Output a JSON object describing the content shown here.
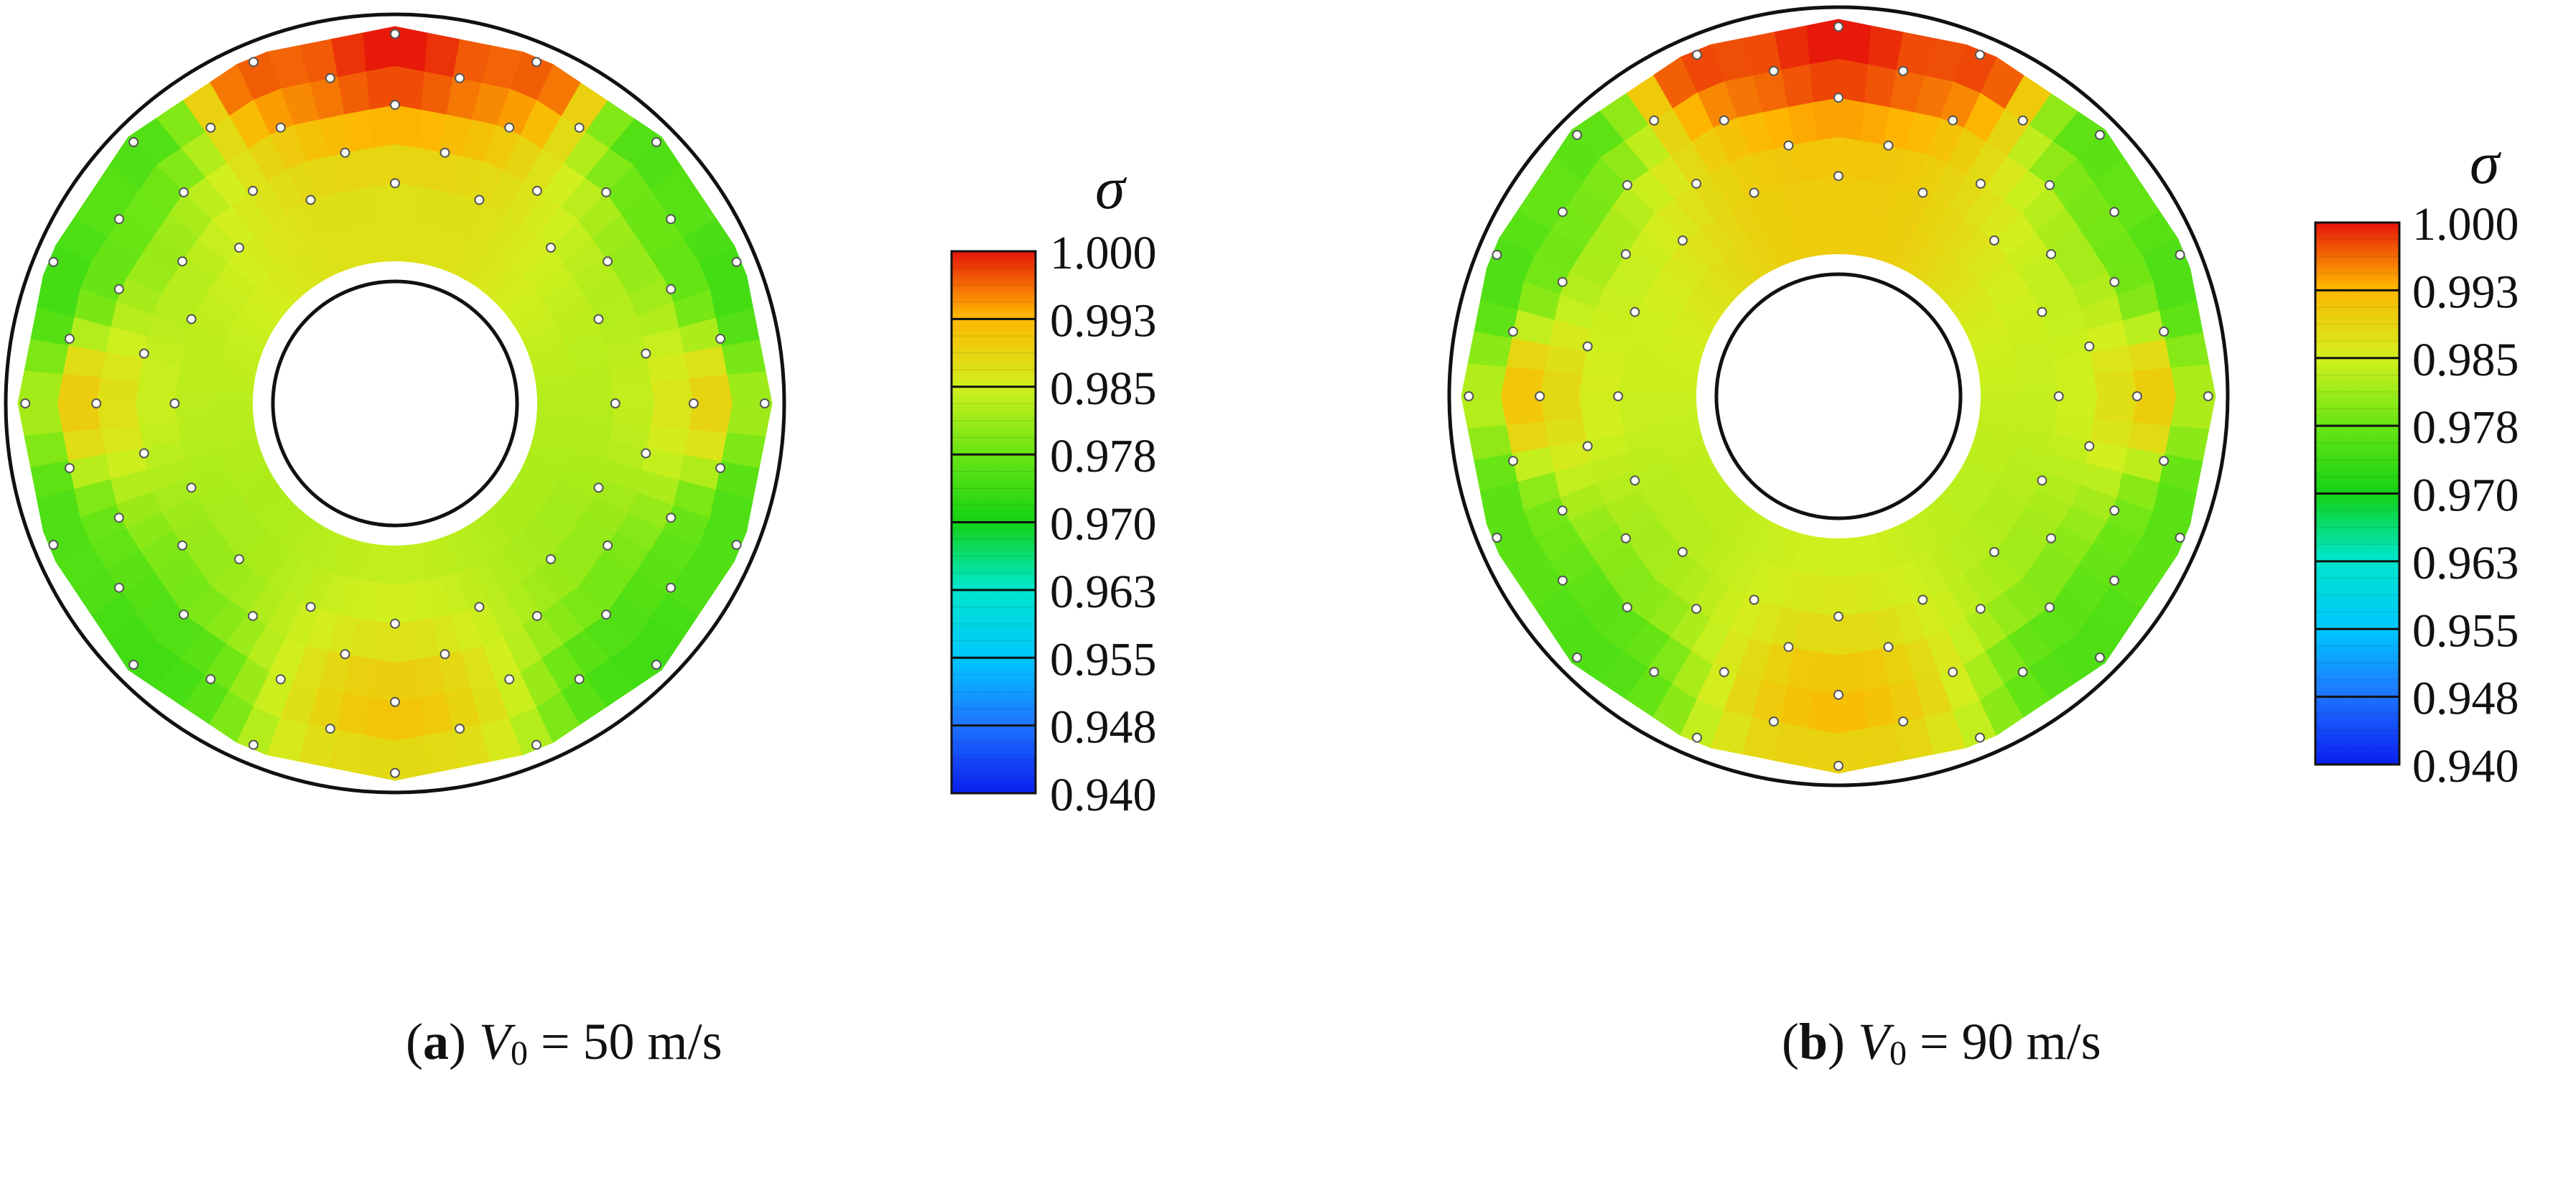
{
  "figure": {
    "colorbar": {
      "symbol": "σ",
      "tick_labels": [
        "1.000",
        "0.993",
        "0.985",
        "0.978",
        "0.970",
        "0.963",
        "0.955",
        "0.948",
        "0.940"
      ],
      "stops": [
        {
          "v": 0.94,
          "c": "#0a1ef0"
        },
        {
          "v": 0.948,
          "c": "#1e78ff"
        },
        {
          "v": 0.955,
          "c": "#00c8ff"
        },
        {
          "v": 0.963,
          "c": "#00e6c8"
        },
        {
          "v": 0.97,
          "c": "#14d214"
        },
        {
          "v": 0.978,
          "c": "#6ee614"
        },
        {
          "v": 0.985,
          "c": "#d2f01e"
        },
        {
          "v": 0.993,
          "c": "#ffb400"
        },
        {
          "v": 1.0,
          "c": "#e6140a"
        }
      ]
    }
  },
  "chart_data": [
    {
      "type": "heatmap",
      "panel_label": "(a)",
      "caption": {
        "label": "a",
        "var": "V",
        "sub": "0",
        "rest": " = 50 m/s"
      },
      "colorbar_range": [
        0.94,
        1.0
      ],
      "samples": [
        {
          "angle_deg": 90,
          "radius": "outer",
          "value": 1.0
        },
        {
          "angle_deg": 67,
          "radius": "outer",
          "value": 0.997
        },
        {
          "angle_deg": 113,
          "radius": "outer",
          "value": 0.997
        },
        {
          "angle_deg": 90,
          "radius": "inner",
          "value": 0.987
        },
        {
          "angle_deg": 45,
          "radius": "outer",
          "value": 0.975
        },
        {
          "angle_deg": 135,
          "radius": "outer",
          "value": 0.975
        },
        {
          "angle_deg": 20,
          "radius": "outer",
          "value": 0.974
        },
        {
          "angle_deg": 160,
          "radius": "outer",
          "value": 0.974
        },
        {
          "angle_deg": 0,
          "radius": "mid",
          "value": 0.989
        },
        {
          "angle_deg": 180,
          "radius": "mid",
          "value": 0.99
        },
        {
          "angle_deg": -20,
          "radius": "outer",
          "value": 0.975
        },
        {
          "angle_deg": 200,
          "radius": "outer",
          "value": 0.975
        },
        {
          "angle_deg": -45,
          "radius": "outer",
          "value": 0.974
        },
        {
          "angle_deg": 225,
          "radius": "outer",
          "value": 0.974
        },
        {
          "angle_deg": -90,
          "radius": "mid",
          "value": 0.991
        },
        {
          "angle_deg": -90,
          "radius": "outer",
          "value": 0.988
        }
      ]
    },
    {
      "type": "heatmap",
      "panel_label": "(b)",
      "caption": {
        "label": "b",
        "var": "V",
        "sub": "0",
        "rest": " = 90 m/s"
      },
      "colorbar_range": [
        0.94,
        1.0
      ],
      "samples": [
        {
          "angle_deg": 90,
          "radius": "outer",
          "value": 1.0
        },
        {
          "angle_deg": 67,
          "radius": "outer",
          "value": 0.998
        },
        {
          "angle_deg": 113,
          "radius": "outer",
          "value": 0.998
        },
        {
          "angle_deg": 90,
          "radius": "inner",
          "value": 0.99
        },
        {
          "angle_deg": 45,
          "radius": "outer",
          "value": 0.976
        },
        {
          "angle_deg": 135,
          "radius": "outer",
          "value": 0.976
        },
        {
          "angle_deg": 20,
          "radius": "outer",
          "value": 0.975
        },
        {
          "angle_deg": 160,
          "radius": "outer",
          "value": 0.975
        },
        {
          "angle_deg": 0,
          "radius": "mid",
          "value": 0.99
        },
        {
          "angle_deg": 180,
          "radius": "mid",
          "value": 0.991
        },
        {
          "angle_deg": -20,
          "radius": "outer",
          "value": 0.976
        },
        {
          "angle_deg": 200,
          "radius": "outer",
          "value": 0.976
        },
        {
          "angle_deg": -45,
          "radius": "outer",
          "value": 0.975
        },
        {
          "angle_deg": 225,
          "radius": "outer",
          "value": 0.975
        },
        {
          "angle_deg": -90,
          "radius": "mid",
          "value": 0.992
        },
        {
          "angle_deg": -90,
          "radius": "outer",
          "value": 0.989
        }
      ]
    }
  ]
}
